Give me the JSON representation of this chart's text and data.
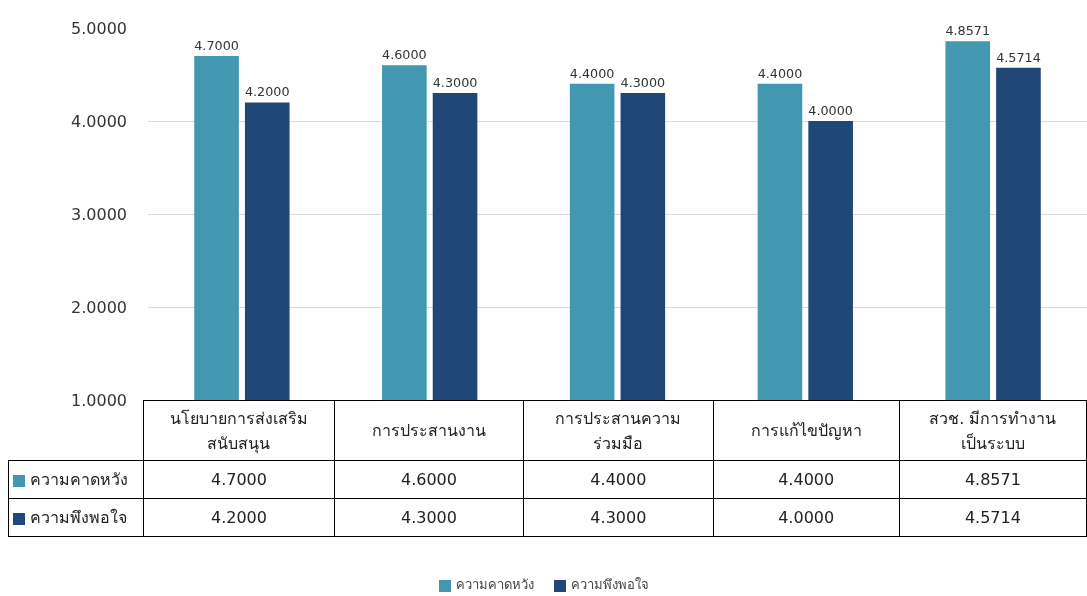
{
  "chart_data": {
    "type": "bar",
    "categories": [
      "นโยบายการส่งเสริมสนับสนุน",
      "การประสานงาน",
      "การประสานความร่วมมือ",
      "การแก้ไขปัญหา",
      "สวช. มีการทำงานเป็นระบบ"
    ],
    "series": [
      {
        "name": "ความคาดหวัง",
        "color": "#4298b0",
        "values": [
          4.7,
          4.6,
          4.4,
          4.4,
          4.8571
        ],
        "value_labels": [
          "4.7000",
          "4.6000",
          "4.4000",
          "4.4000",
          "4.8571"
        ]
      },
      {
        "name": "ความพึงพอใจ",
        "color": "#1f4777",
        "values": [
          4.2,
          4.3,
          4.3,
          4.0,
          4.5714
        ],
        "value_labels": [
          "4.2000",
          "4.3000",
          "4.3000",
          "4.0000",
          "4.5714"
        ]
      }
    ],
    "ylim": [
      1,
      5
    ],
    "yticks": [
      {
        "value": 1,
        "label": "1.0000"
      },
      {
        "value": 2,
        "label": "2.0000"
      },
      {
        "value": 3,
        "label": "3.0000"
      },
      {
        "value": 4,
        "label": "4.0000"
      },
      {
        "value": 5,
        "label": "5.0000"
      }
    ],
    "grid": "y",
    "legend": "bottom",
    "tick_labels": "y"
  }
}
